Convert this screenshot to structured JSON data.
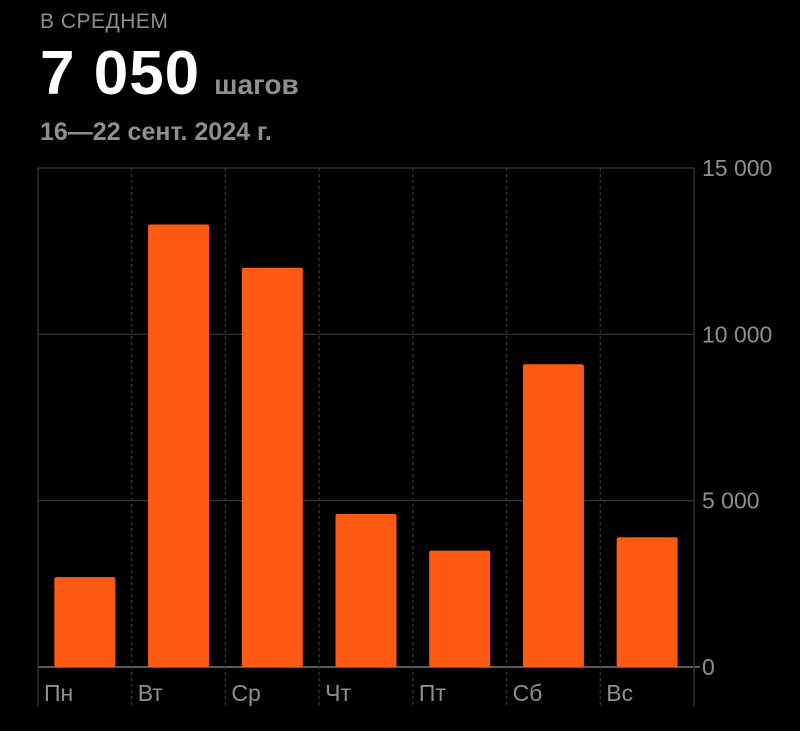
{
  "summary": {
    "caption": "В СРЕДНЕМ",
    "value": "7 050",
    "unit": "шагов",
    "date_range": "16—22 сент. 2024 г."
  },
  "colors": {
    "bar": "#ff5a14",
    "grid": "#3a3a3c",
    "axis_text": "#8e8e93",
    "background": "#000000"
  },
  "chart_data": {
    "type": "bar",
    "title": "",
    "xlabel": "",
    "ylabel": "",
    "categories": [
      "Пн",
      "Вт",
      "Ср",
      "Чт",
      "Пт",
      "Сб",
      "Вс"
    ],
    "values": [
      2700,
      13300,
      12000,
      4600,
      3500,
      9100,
      3900
    ],
    "ylim": [
      0,
      15000
    ],
    "yticks": [
      0,
      5000,
      10000,
      15000
    ],
    "ytick_labels": [
      "0",
      "5 000",
      "10 000",
      "15 000"
    ],
    "y_axis_position": "right",
    "grid": true
  }
}
